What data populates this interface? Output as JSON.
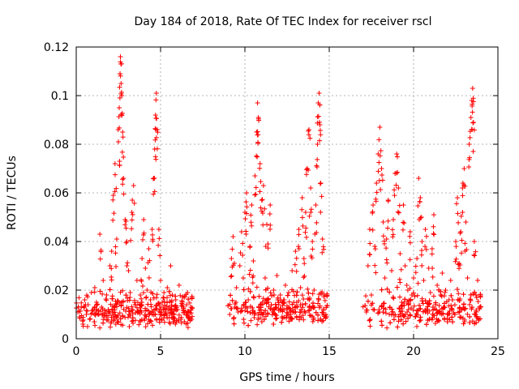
{
  "chart_data": {
    "type": "scatter",
    "title": "Day 184 of 2018, Rate Of TEC Index for receiver rscl",
    "xlabel": "GPS time / hours",
    "ylabel": "ROTI / TECUs",
    "xlim": [
      0,
      25
    ],
    "ylim": [
      0,
      0.12
    ],
    "xticks": [
      0,
      5,
      10,
      15,
      20,
      25
    ],
    "xtick_labels": [
      "0",
      "5",
      "10",
      "15",
      "20",
      "25"
    ],
    "yticks": [
      0,
      0.02,
      0.04,
      0.06,
      0.08,
      0.1,
      0.12
    ],
    "ytick_labels": [
      "0",
      "0.02",
      "0.04",
      "0.06",
      "0.08",
      "0.1",
      "0.12"
    ],
    "grid": true,
    "marker": "plus",
    "color": "#ff0000",
    "series": [
      {
        "name": "ROTI",
        "points": [
          [
            0.1,
            0.011
          ],
          [
            0.2,
            0.009
          ],
          [
            0.3,
            0.013
          ],
          [
            0.4,
            0.006
          ],
          [
            0.5,
            0.016
          ],
          [
            0.6,
            0.01
          ],
          [
            0.7,
            0.014
          ],
          [
            0.8,
            0.008
          ],
          [
            0.9,
            0.019
          ],
          [
            1.0,
            0.012
          ],
          [
            1.1,
            0.021
          ],
          [
            1.2,
            0.015
          ],
          [
            1.3,
            0.01
          ],
          [
            1.4,
            0.043
          ],
          [
            1.5,
            0.013
          ],
          [
            1.6,
            0.024
          ],
          [
            1.7,
            0.009
          ],
          [
            1.8,
            0.018
          ],
          [
            1.9,
            0.012
          ],
          [
            2.0,
            0.03
          ],
          [
            2.1,
            0.036
          ],
          [
            2.2,
            0.059
          ],
          [
            2.3,
            0.072
          ],
          [
            2.4,
            0.041
          ],
          [
            2.5,
            0.081
          ],
          [
            2.55,
            0.095
          ],
          [
            2.6,
            0.109
          ],
          [
            2.62,
            0.116
          ],
          [
            2.65,
            0.113
          ],
          [
            2.7,
            0.1
          ],
          [
            2.75,
            0.085
          ],
          [
            2.8,
            0.066
          ],
          [
            2.9,
            0.049
          ],
          [
            3.0,
            0.04
          ],
          [
            3.1,
            0.028
          ],
          [
            3.2,
            0.019
          ],
          [
            3.3,
            0.052
          ],
          [
            3.4,
            0.063
          ],
          [
            3.5,
            0.014
          ],
          [
            3.6,
            0.024
          ],
          [
            3.7,
            0.011
          ],
          [
            3.8,
            0.018
          ],
          [
            3.9,
            0.033
          ],
          [
            4.0,
            0.049
          ],
          [
            4.1,
            0.029
          ],
          [
            4.2,
            0.02
          ],
          [
            4.3,
            0.037
          ],
          [
            4.4,
            0.016
          ],
          [
            4.5,
            0.045
          ],
          [
            4.6,
            0.066
          ],
          [
            4.65,
            0.078
          ],
          [
            4.7,
            0.092
          ],
          [
            4.75,
            0.101
          ],
          [
            4.8,
            0.086
          ],
          [
            4.9,
            0.045
          ],
          [
            5.0,
            0.024
          ],
          [
            5.1,
            0.015
          ],
          [
            5.2,
            0.019
          ],
          [
            5.3,
            0.011
          ],
          [
            5.4,
            0.021
          ],
          [
            5.5,
            0.013
          ],
          [
            5.6,
            0.03
          ],
          [
            5.7,
            0.018
          ],
          [
            5.8,
            0.01
          ],
          [
            5.9,
            0.016
          ],
          [
            6.0,
            0.012
          ],
          [
            6.1,
            0.022
          ],
          [
            6.2,
            0.008
          ],
          [
            6.3,
            0.014
          ],
          [
            6.4,
            0.017
          ],
          [
            6.5,
            0.011
          ],
          [
            6.6,
            0.019
          ],
          [
            6.7,
            0.009
          ],
          [
            6.8,
            0.013
          ],
          [
            9.1,
            0.01
          ],
          [
            9.2,
            0.033
          ],
          [
            9.3,
            0.042
          ],
          [
            9.4,
            0.013
          ],
          [
            9.5,
            0.021
          ],
          [
            9.6,
            0.011
          ],
          [
            9.7,
            0.03
          ],
          [
            9.8,
            0.044
          ],
          [
            9.9,
            0.025
          ],
          [
            10.0,
            0.052
          ],
          [
            10.1,
            0.06
          ],
          [
            10.2,
            0.016
          ],
          [
            10.3,
            0.038
          ],
          [
            10.4,
            0.055
          ],
          [
            10.5,
            0.032
          ],
          [
            10.6,
            0.067
          ],
          [
            10.7,
            0.085
          ],
          [
            10.75,
            0.097
          ],
          [
            10.8,
            0.091
          ],
          [
            10.9,
            0.072
          ],
          [
            11.0,
            0.057
          ],
          [
            11.1,
            0.063
          ],
          [
            11.2,
            0.025
          ],
          [
            11.3,
            0.047
          ],
          [
            11.4,
            0.015
          ],
          [
            11.5,
            0.055
          ],
          [
            11.6,
            0.012
          ],
          [
            11.7,
            0.02
          ],
          [
            11.8,
            0.01
          ],
          [
            11.9,
            0.026
          ],
          [
            12.0,
            0.014
          ],
          [
            12.1,
            0.018
          ],
          [
            12.2,
            0.009
          ],
          [
            12.3,
            0.016
          ],
          [
            12.4,
            0.022
          ],
          [
            12.5,
            0.012
          ],
          [
            12.6,
            0.019
          ],
          [
            12.7,
            0.01
          ],
          [
            12.8,
            0.028
          ],
          [
            12.9,
            0.015
          ],
          [
            13.0,
            0.036
          ],
          [
            13.1,
            0.013
          ],
          [
            13.2,
            0.045
          ],
          [
            13.3,
            0.021
          ],
          [
            13.4,
            0.058
          ],
          [
            13.5,
            0.033
          ],
          [
            13.6,
            0.052
          ],
          [
            13.7,
            0.07
          ],
          [
            13.8,
            0.086
          ],
          [
            13.9,
            0.062
          ],
          [
            14.0,
            0.04
          ],
          [
            14.1,
            0.02
          ],
          [
            14.2,
            0.055
          ],
          [
            14.3,
            0.08
          ],
          [
            14.35,
            0.097
          ],
          [
            14.4,
            0.101
          ],
          [
            14.45,
            0.088
          ],
          [
            14.5,
            0.064
          ],
          [
            14.6,
            0.041
          ],
          [
            14.7,
            0.018
          ],
          [
            14.8,
            0.01
          ],
          [
            17.2,
            0.011
          ],
          [
            17.3,
            0.03
          ],
          [
            17.4,
            0.045
          ],
          [
            17.5,
            0.018
          ],
          [
            17.6,
            0.055
          ],
          [
            17.7,
            0.038
          ],
          [
            17.8,
            0.064
          ],
          [
            17.9,
            0.076
          ],
          [
            18.0,
            0.087
          ],
          [
            18.1,
            0.07
          ],
          [
            18.2,
            0.048
          ],
          [
            18.3,
            0.025
          ],
          [
            18.4,
            0.041
          ],
          [
            18.5,
            0.057
          ],
          [
            18.6,
            0.013
          ],
          [
            18.7,
            0.028
          ],
          [
            18.8,
            0.049
          ],
          [
            18.9,
            0.068
          ],
          [
            19.0,
            0.076
          ],
          [
            19.1,
            0.062
          ],
          [
            19.2,
            0.035
          ],
          [
            19.3,
            0.015
          ],
          [
            19.4,
            0.055
          ],
          [
            19.5,
            0.03
          ],
          [
            19.6,
            0.022
          ],
          [
            19.7,
            0.012
          ],
          [
            19.8,
            0.044
          ],
          [
            19.9,
            0.018
          ],
          [
            20.0,
            0.025
          ],
          [
            20.1,
            0.009
          ],
          [
            20.2,
            0.033
          ],
          [
            20.3,
            0.066
          ],
          [
            20.4,
            0.058
          ],
          [
            20.5,
            0.04
          ],
          [
            20.6,
            0.024
          ],
          [
            20.7,
            0.045
          ],
          [
            20.8,
            0.012
          ],
          [
            20.9,
            0.029
          ],
          [
            21.0,
            0.019
          ],
          [
            21.1,
            0.037
          ],
          [
            21.2,
            0.051
          ],
          [
            21.3,
            0.014
          ],
          [
            21.4,
            0.022
          ],
          [
            21.5,
            0.011
          ],
          [
            21.6,
            0.018
          ],
          [
            21.7,
            0.027
          ],
          [
            21.8,
            0.013
          ],
          [
            21.9,
            0.02
          ],
          [
            22.0,
            0.01
          ],
          [
            22.1,
            0.016
          ],
          [
            22.2,
            0.024
          ],
          [
            22.3,
            0.012
          ],
          [
            22.5,
            0.04
          ],
          [
            22.6,
            0.058
          ],
          [
            22.7,
            0.031
          ],
          [
            22.8,
            0.044
          ],
          [
            22.9,
            0.062
          ],
          [
            23.0,
            0.07
          ],
          [
            23.1,
            0.048
          ],
          [
            23.2,
            0.025
          ],
          [
            23.3,
            0.08
          ],
          [
            23.4,
            0.091
          ],
          [
            23.45,
            0.098
          ],
          [
            23.5,
            0.103
          ],
          [
            23.55,
            0.089
          ],
          [
            23.6,
            0.04
          ],
          [
            23.7,
            0.018
          ],
          [
            23.8,
            0.024
          ],
          [
            23.9,
            0.013
          ]
        ],
        "baseline_segments": [
          {
            "x": [
              0.0,
              6.9
            ],
            "range": [
              0.004,
              0.021
            ]
          },
          {
            "x": [
              9.0,
              14.9
            ],
            "range": [
              0.005,
              0.022
            ]
          },
          {
            "x": [
              17.0,
              24.0
            ],
            "range": [
              0.004,
              0.022
            ]
          }
        ]
      }
    ]
  }
}
